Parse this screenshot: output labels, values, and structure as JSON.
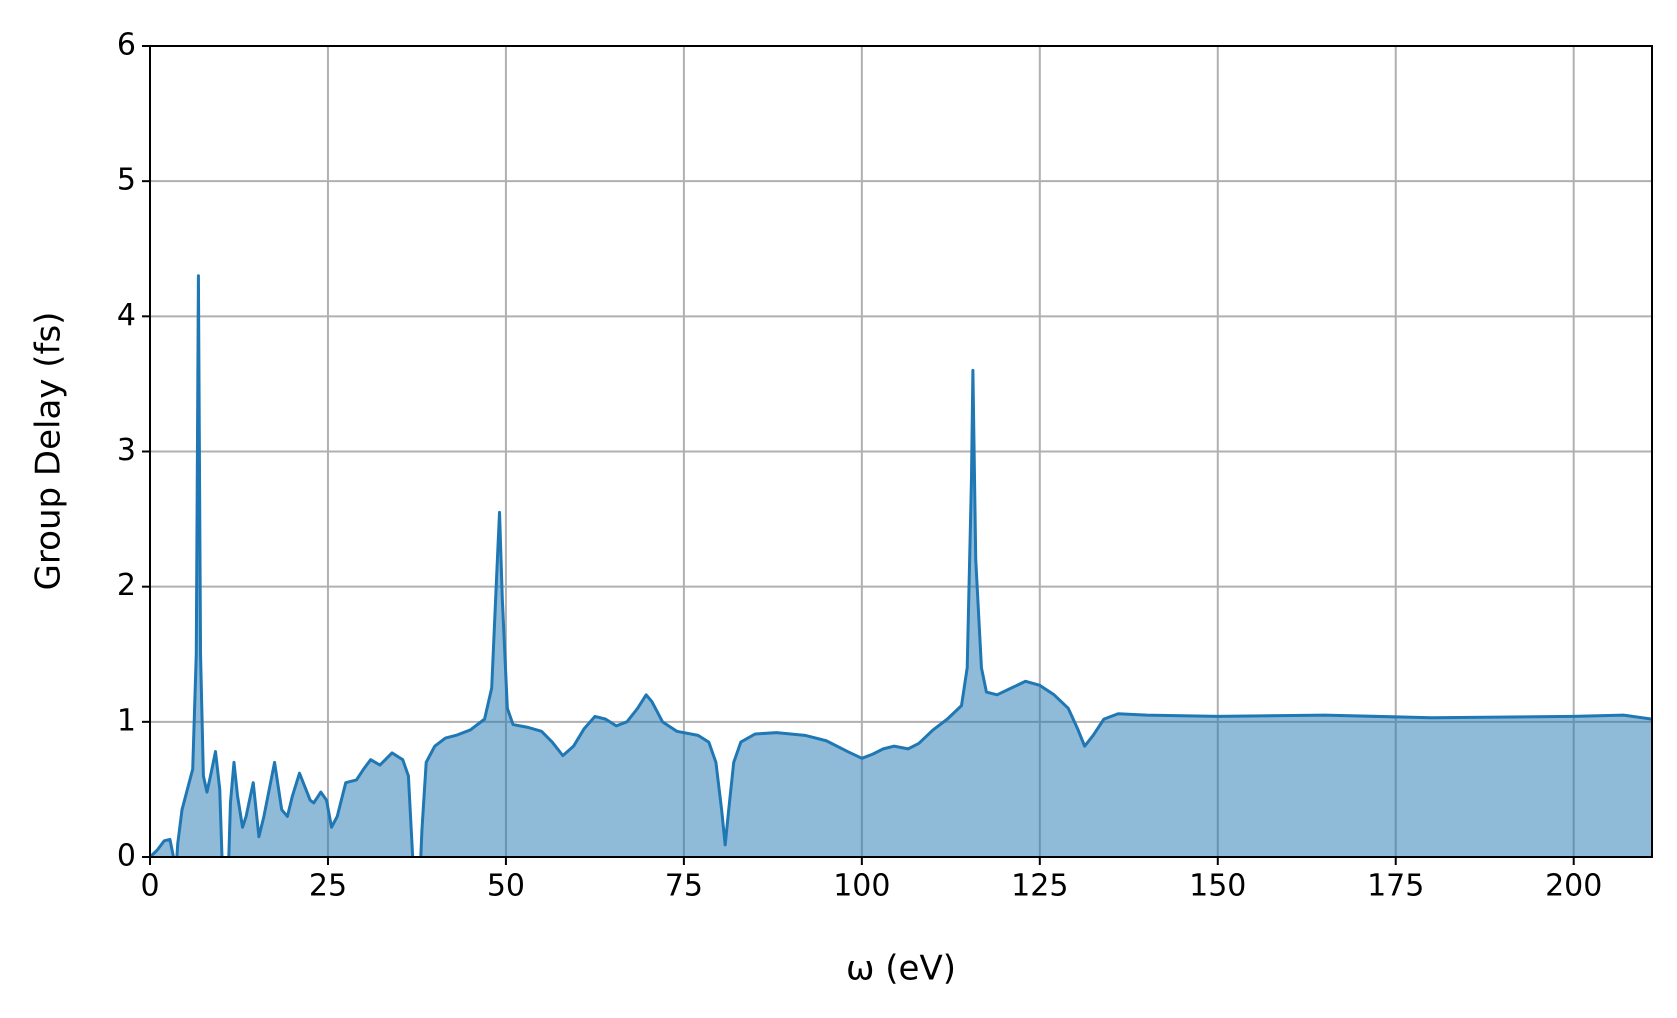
{
  "chart_data": {
    "type": "area",
    "xlabel": "ω (eV)",
    "ylabel": "Group Delay (fs)",
    "xlim": [
      0,
      211
    ],
    "ylim": [
      0,
      6
    ],
    "xticks": [
      0,
      25,
      50,
      75,
      100,
      125,
      150,
      175,
      200
    ],
    "yticks": [
      0,
      1,
      2,
      3,
      4,
      5,
      6
    ],
    "grid": true,
    "series": [
      {
        "color": "#1f77b4",
        "x": [
          0,
          1,
          2,
          2.8,
          3.3,
          3.4,
          3.9,
          4.5,
          5.5,
          6,
          6.5,
          6.8,
          7.1,
          7.5,
          8,
          8.5,
          9.2,
          9.8,
          10.3,
          10.9,
          11.3,
          11.8,
          12.3,
          13,
          13.5,
          14.5,
          15.3,
          16,
          17.5,
          18.5,
          19.3,
          20,
          21,
          22.5,
          23,
          24,
          24.8,
          25.5,
          26.3,
          27.5,
          29,
          30,
          31,
          32.3,
          34,
          35.5,
          36.3,
          36.9,
          37.3,
          37.8,
          38.2,
          38.8,
          40,
          41.5,
          43,
          45,
          47,
          48,
          48.8,
          49.1,
          49.5,
          50.2,
          51,
          53,
          55,
          56.5,
          58,
          59.5,
          61,
          62.5,
          64,
          65.5,
          67,
          68.5,
          69.7,
          70.5,
          72,
          74,
          77,
          78.5,
          79.5,
          80.3,
          80.8,
          81.3,
          82,
          83,
          85,
          88,
          92,
          95,
          98,
          100,
          101.5,
          103,
          104.5,
          106.5,
          108,
          110,
          112,
          114,
          114.8,
          115.4,
          115.6,
          116,
          116.8,
          117.5,
          119,
          121,
          123,
          125,
          127,
          129,
          130.3,
          131.3,
          132.5,
          134,
          136,
          140,
          150,
          165,
          180,
          200,
          207,
          211
        ],
        "values": [
          0,
          0.05,
          0.12,
          0.13,
          0,
          -0.3,
          0.1,
          0.35,
          0.55,
          0.65,
          1.5,
          4.3,
          1.5,
          0.6,
          0.48,
          0.6,
          0.78,
          0.5,
          -0.3,
          -0.3,
          0.4,
          0.7,
          0.45,
          0.22,
          0.3,
          0.55,
          0.15,
          0.3,
          0.7,
          0.35,
          0.3,
          0.45,
          0.62,
          0.42,
          0.4,
          0.48,
          0.42,
          0.22,
          0.3,
          0.55,
          0.57,
          0.65,
          0.72,
          0.68,
          0.77,
          0.72,
          0.6,
          0,
          -0.3,
          -0.3,
          0.2,
          0.7,
          0.82,
          0.88,
          0.9,
          0.94,
          1.02,
          1.25,
          2.2,
          2.55,
          1.9,
          1.1,
          0.98,
          0.96,
          0.93,
          0.85,
          0.75,
          0.82,
          0.95,
          1.04,
          1.02,
          0.97,
          1.0,
          1.1,
          1.2,
          1.15,
          1.0,
          0.93,
          0.9,
          0.85,
          0.7,
          0.35,
          0.09,
          0.35,
          0.7,
          0.85,
          0.91,
          0.92,
          0.9,
          0.86,
          0.78,
          0.73,
          0.76,
          0.8,
          0.82,
          0.8,
          0.84,
          0.94,
          1.02,
          1.12,
          1.4,
          2.8,
          3.6,
          2.2,
          1.4,
          1.22,
          1.2,
          1.25,
          1.3,
          1.27,
          1.2,
          1.1,
          0.95,
          0.82,
          0.9,
          1.02,
          1.06,
          1.05,
          1.04,
          1.05,
          1.03,
          1.04,
          1.05,
          1.02
        ]
      }
    ]
  }
}
